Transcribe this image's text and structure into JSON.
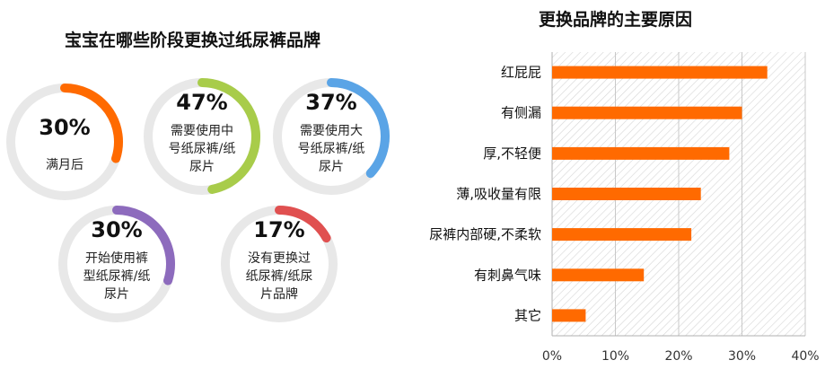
{
  "left_panel": {
    "title": "宝宝在哪些阶段更换过纸尿裤品牌",
    "ring_track_color": "#e8e8e8",
    "rings": [
      {
        "percent_label": "30%",
        "value": 30,
        "desc": [
          "满月后"
        ],
        "color": "#ff6a00"
      },
      {
        "percent_label": "47%",
        "value": 47,
        "desc": [
          "需要使用中",
          "号纸尿裤/纸",
          "尿片"
        ],
        "color": "#a8cc4a"
      },
      {
        "percent_label": "37%",
        "value": 37,
        "desc": [
          "需要使用大",
          "号纸尿裤/纸",
          "尿片"
        ],
        "color": "#5aa4e6"
      },
      {
        "percent_label": "30%",
        "value": 30,
        "desc": [
          "开始使用裤",
          "型纸尿裤/纸",
          "尿片"
        ],
        "color": "#8d6bbd"
      },
      {
        "percent_label": "17%",
        "value": 17,
        "desc": [
          "没有更换过",
          "纸尿裤/纸尿",
          "片品牌"
        ],
        "color": "#e05050"
      }
    ]
  },
  "chart_data": {
    "type": "bar",
    "orientation": "horizontal",
    "title": "更换品牌的主要原因",
    "categories": [
      "红屁屁",
      "有侧漏",
      "厚,不轻便",
      "薄,吸收量有限",
      "尿裤内部硬,不柔软",
      "有刺鼻气味",
      "其它"
    ],
    "values": [
      34,
      30,
      28,
      23.5,
      22,
      14.5,
      5.3
    ],
    "unit": "%",
    "xlim": [
      0,
      40
    ],
    "x_ticks": [
      0,
      10,
      20,
      30,
      40
    ],
    "x_tick_labels": [
      "0%",
      "10%",
      "20%",
      "30%",
      "40%"
    ],
    "bar_color": "#ff6a00",
    "plot_background": "diagonal hatch",
    "grid": true,
    "legend": "none"
  }
}
